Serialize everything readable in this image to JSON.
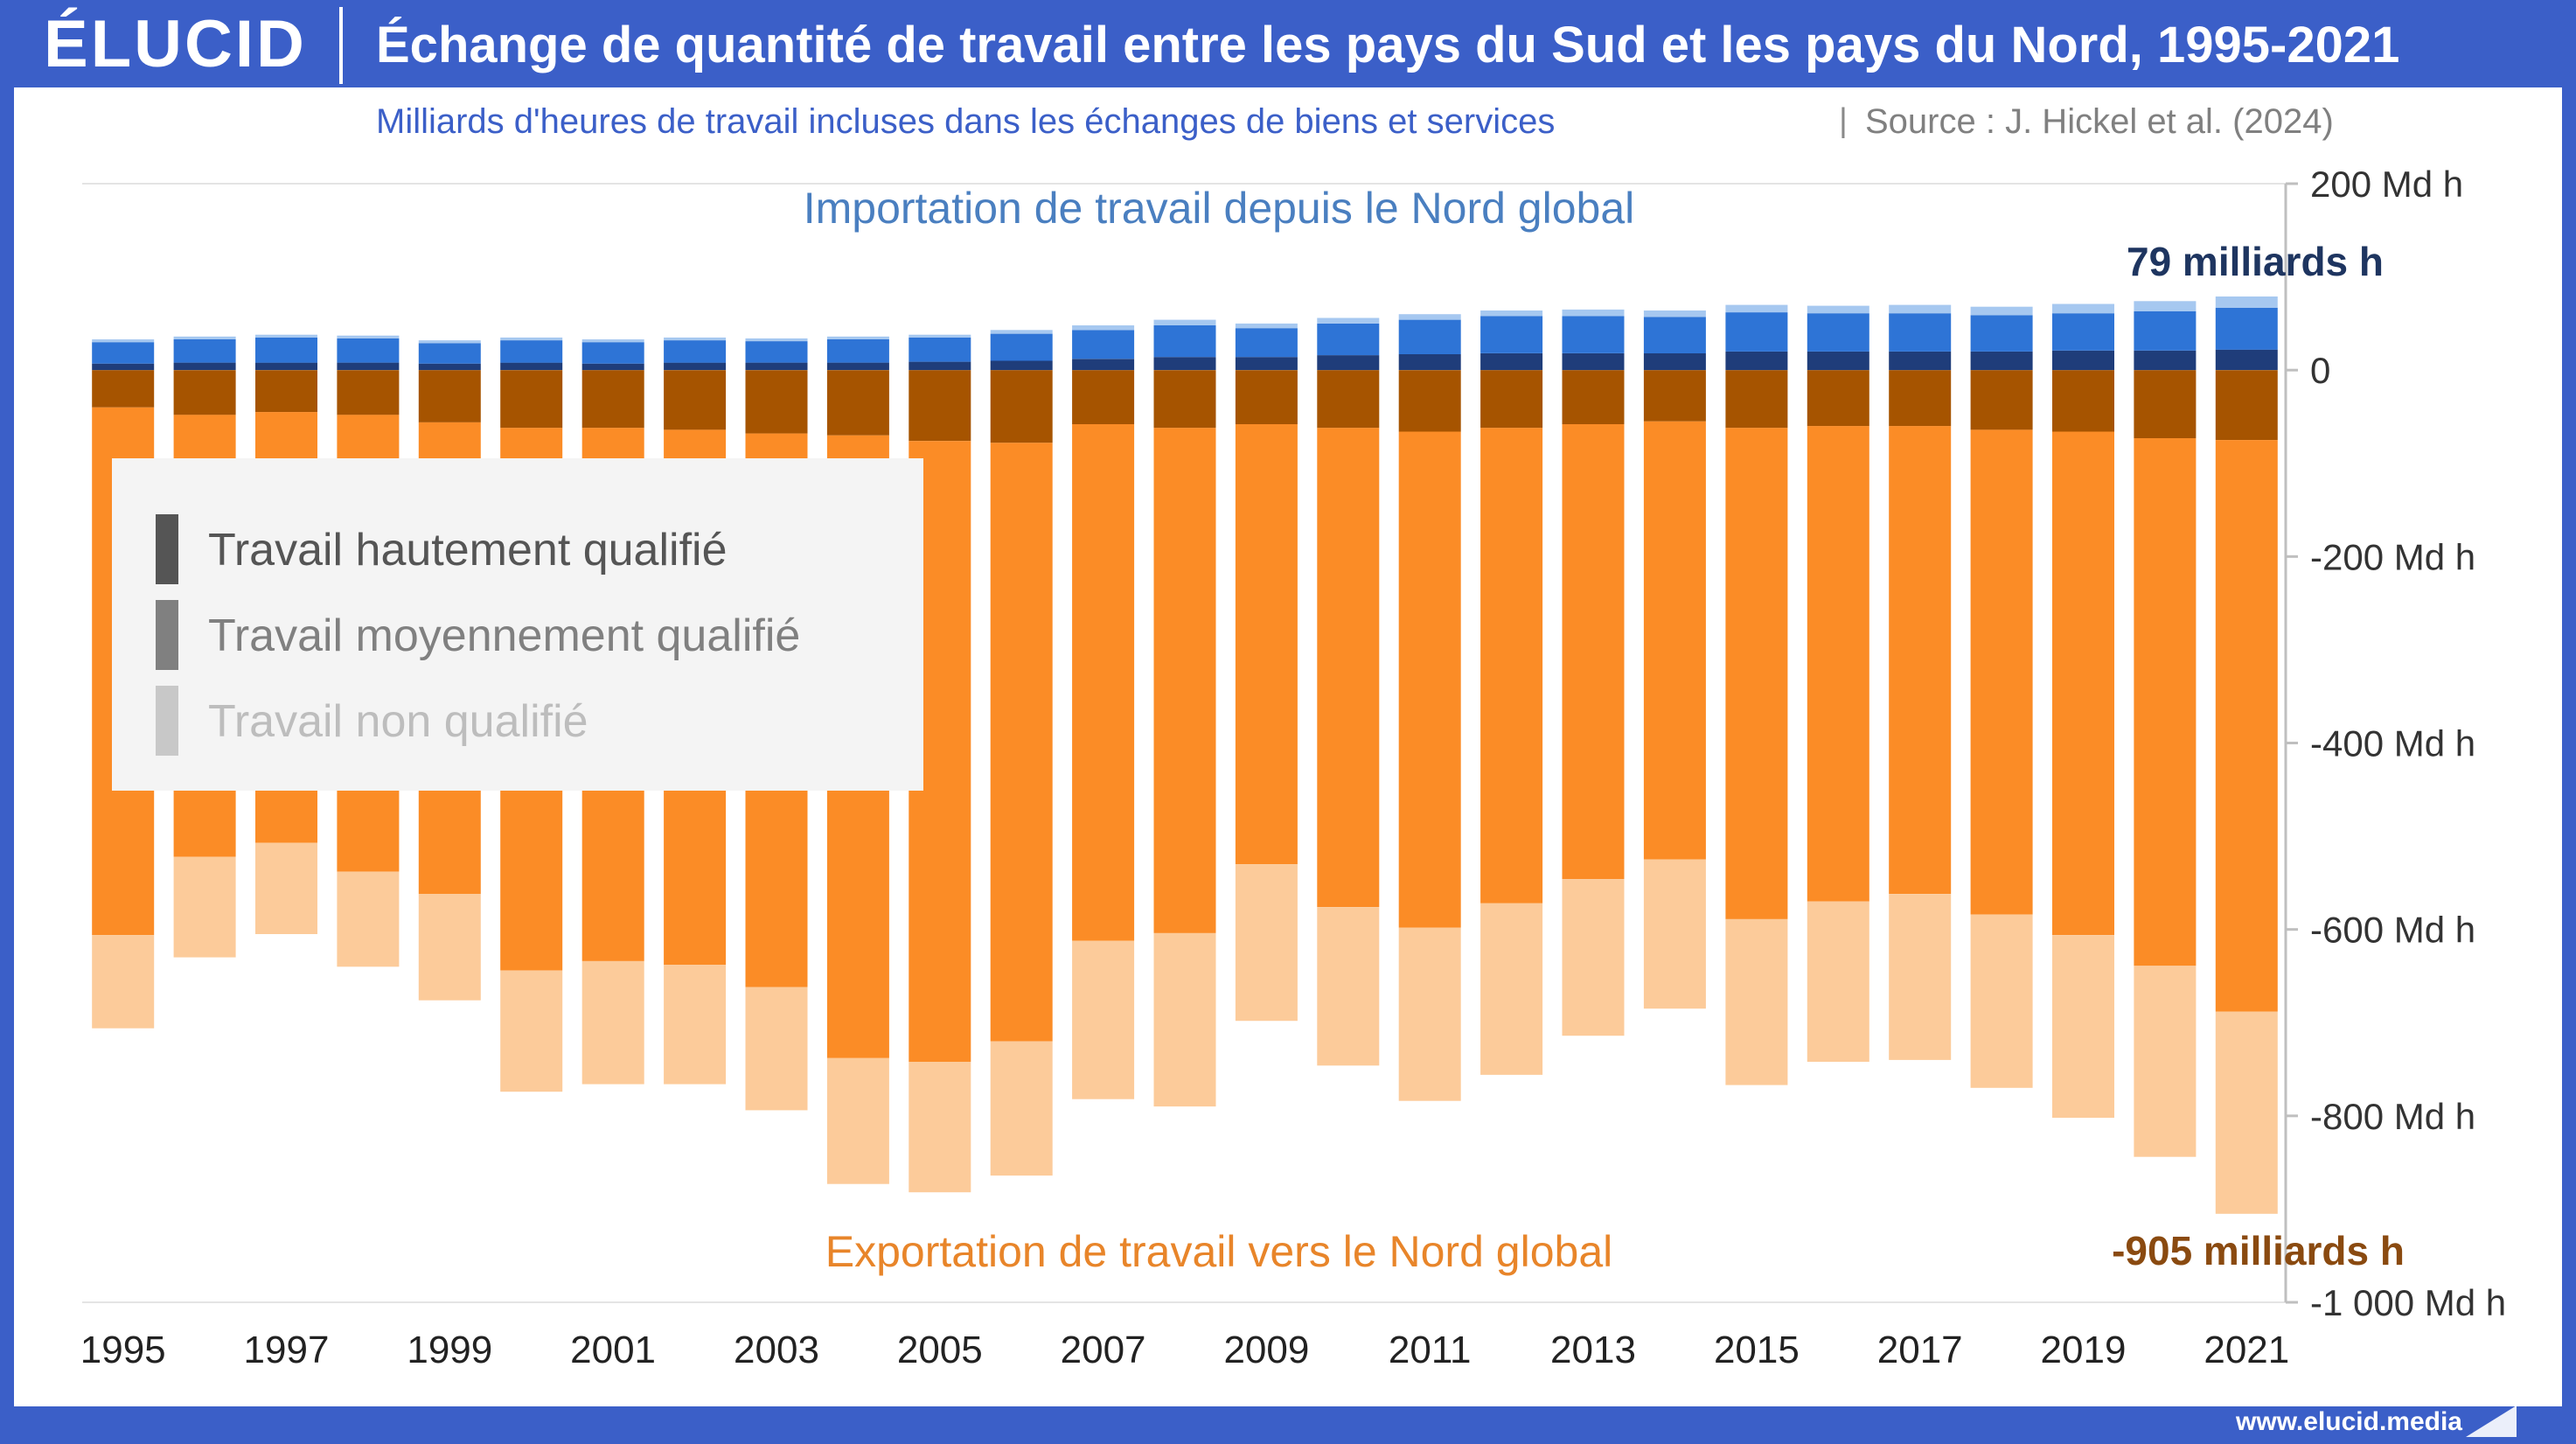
{
  "header": {
    "logo": "ÉLUCID",
    "title": "Échange de quantité de travail entre les pays du Sud et les pays du Nord, 1995-2021"
  },
  "subtitle": {
    "main": "Milliards d'heures de travail incluses dans les échanges de biens et services",
    "separator": "|",
    "source": "Source : J. Hickel et al. (2024)"
  },
  "annotations": {
    "import_label": "Importation de travail depuis le Nord global",
    "export_label": "Exportation de travail vers le Nord global",
    "import_total_2021": "79 milliards h",
    "export_total_2021": "-905 milliards h"
  },
  "legend": {
    "items": [
      {
        "label": "Travail hautement qualifié",
        "color": "#555555"
      },
      {
        "label": "Travail moyennement qualifié",
        "color": "#808080"
      },
      {
        "label": "Travail non qualifié",
        "color": "#c8c8c8"
      }
    ]
  },
  "footer": {
    "url": "www.elucid.media"
  },
  "colors": {
    "import_high": "#1f3d7a",
    "import_medium": "#2e74d6",
    "import_low": "#a6c8f0",
    "export_high": "#a65400",
    "export_medium": "#fb8c26",
    "export_low": "#fccb9a",
    "import_text": "#4a7fc0",
    "export_text": "#e8852a",
    "import_total_text": "#1e3560",
    "export_total_text": "#8a4a10",
    "brand": "#3b5fc8"
  },
  "chart_data": {
    "type": "bar",
    "stacked": true,
    "x": [
      1995,
      1996,
      1997,
      1998,
      1999,
      2000,
      2001,
      2002,
      2003,
      2004,
      2005,
      2006,
      2007,
      2008,
      2009,
      2010,
      2011,
      2012,
      2013,
      2014,
      2015,
      2016,
      2017,
      2018,
      2019,
      2020,
      2021
    ],
    "x_tick_labels": [
      "1995",
      "1997",
      "1999",
      "2001",
      "2003",
      "2005",
      "2007",
      "2009",
      "2011",
      "2013",
      "2015",
      "2017",
      "2019",
      "2021"
    ],
    "ylim": [
      -1000,
      200
    ],
    "y_ticks": [
      200,
      0,
      -200,
      -400,
      -600,
      -800,
      -1000
    ],
    "y_tick_labels": [
      "200 Md h",
      "0",
      "-200 Md h",
      "-400 Md h",
      "-600 Md h",
      "-800 Md h",
      "-1 000 Md h"
    ],
    "y_axis_position": "right",
    "legend_position": "top-left",
    "series": [
      {
        "key": "import_high",
        "values": [
          7,
          8,
          8,
          8,
          7,
          8,
          7,
          8,
          8,
          8,
          9,
          10,
          12,
          14,
          14,
          16,
          17,
          18,
          18,
          18,
          20,
          20,
          20,
          20,
          21,
          21,
          22
        ]
      },
      {
        "key": "import_medium",
        "values": [
          23,
          25,
          27,
          26,
          22,
          24,
          23,
          24,
          23,
          25,
          26,
          29,
          31,
          34,
          31,
          34,
          37,
          40,
          40,
          39,
          42,
          41,
          41,
          39,
          40,
          42,
          45
        ]
      },
      {
        "key": "import_low",
        "values": [
          3,
          3,
          3,
          3,
          3,
          3,
          3,
          3,
          3,
          3,
          3,
          4,
          5,
          6,
          5,
          6,
          6,
          6,
          7,
          7,
          8,
          8,
          9,
          9,
          10,
          11,
          12
        ]
      },
      {
        "key": "export_high",
        "values": [
          -40,
          -48,
          -45,
          -48,
          -56,
          -62,
          -62,
          -64,
          -68,
          -70,
          -76,
          -78,
          -58,
          -62,
          -58,
          -62,
          -66,
          -62,
          -58,
          -55,
          -62,
          -60,
          -60,
          -64,
          -66,
          -73,
          -75
        ]
      },
      {
        "key": "export_medium",
        "values": [
          -566,
          -474,
          -462,
          -490,
          -506,
          -582,
          -572,
          -574,
          -594,
          -668,
          -666,
          -642,
          -554,
          -542,
          -472,
          -514,
          -532,
          -510,
          -488,
          -470,
          -527,
          -510,
          -502,
          -520,
          -540,
          -566,
          -613
        ]
      },
      {
        "key": "export_low",
        "values": [
          -100,
          -108,
          -98,
          -102,
          -114,
          -130,
          -132,
          -128,
          -132,
          -135,
          -140,
          -144,
          -170,
          -186,
          -168,
          -170,
          -186,
          -184,
          -168,
          -160,
          -178,
          -172,
          -178,
          -186,
          -196,
          -205,
          -217
        ]
      }
    ]
  }
}
